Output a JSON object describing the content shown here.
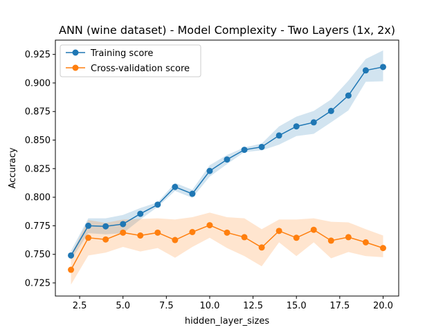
{
  "chart_data": {
    "type": "line",
    "title": "ANN (wine dataset) - Model Complexity - Two Layers (1x, 2x)",
    "xlabel": "hidden_layer_sizes",
    "ylabel": "Accuracy",
    "xlim": [
      1.1,
      20.9
    ],
    "ylim": [
      0.7135,
      0.9375
    ],
    "xticks": [
      2.5,
      5.0,
      7.5,
      10.0,
      12.5,
      15.0,
      17.5,
      20.0
    ],
    "xtick_labels": [
      "2.5",
      "5.0",
      "7.5",
      "10.0",
      "12.5",
      "15.0",
      "17.5",
      "20.0"
    ],
    "yticks": [
      0.725,
      0.75,
      0.775,
      0.8,
      0.825,
      0.85,
      0.875,
      0.9,
      0.925
    ],
    "ytick_labels": [
      "0.725",
      "0.750",
      "0.775",
      "0.800",
      "0.825",
      "0.850",
      "0.875",
      "0.900",
      "0.925"
    ],
    "grid": false,
    "legend_position": "top-left",
    "x": [
      2,
      3,
      4,
      5,
      6,
      7,
      8,
      9,
      10,
      11,
      12,
      13,
      14,
      15,
      16,
      17,
      18,
      19,
      20
    ],
    "series": [
      {
        "name": "Training score",
        "color": "#1f77b4",
        "values": [
          0.749,
          0.775,
          0.7745,
          0.7765,
          0.7855,
          0.7935,
          0.809,
          0.803,
          0.823,
          0.833,
          0.8415,
          0.844,
          0.854,
          0.862,
          0.8655,
          0.8755,
          0.889,
          0.911,
          0.914
        ],
        "band_upper": [
          0.753,
          0.7815,
          0.7815,
          0.7845,
          0.7905,
          0.7955,
          0.8125,
          0.8065,
          0.828,
          0.837,
          0.8435,
          0.847,
          0.862,
          0.8705,
          0.8755,
          0.8855,
          0.902,
          0.921,
          0.9285
        ],
        "band_lower": [
          0.745,
          0.7685,
          0.7675,
          0.7685,
          0.7805,
          0.7915,
          0.8055,
          0.7995,
          0.818,
          0.829,
          0.8395,
          0.841,
          0.846,
          0.8535,
          0.8555,
          0.8655,
          0.876,
          0.901,
          0.9015
        ]
      },
      {
        "name": "Cross-validation score",
        "color": "#ff7f0e",
        "values": [
          0.7365,
          0.7645,
          0.763,
          0.769,
          0.7665,
          0.769,
          0.7625,
          0.7695,
          0.7755,
          0.769,
          0.765,
          0.756,
          0.7705,
          0.7645,
          0.7715,
          0.762,
          0.765,
          0.7605,
          0.7555
        ],
        "band_upper": [
          0.7495,
          0.78,
          0.7775,
          0.7805,
          0.781,
          0.7815,
          0.7805,
          0.7825,
          0.7865,
          0.7825,
          0.7815,
          0.772,
          0.7805,
          0.7805,
          0.7815,
          0.7785,
          0.778,
          0.772,
          0.7665
        ],
        "band_lower": [
          0.7235,
          0.749,
          0.7515,
          0.7565,
          0.7525,
          0.7555,
          0.747,
          0.7565,
          0.7645,
          0.7555,
          0.7485,
          0.7395,
          0.7605,
          0.7485,
          0.7605,
          0.7465,
          0.752,
          0.7485,
          0.7475
        ]
      }
    ]
  }
}
